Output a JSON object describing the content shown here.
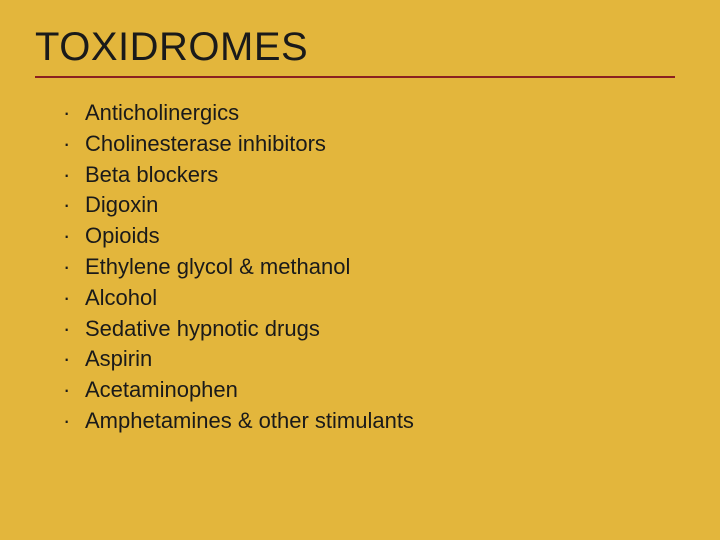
{
  "slide": {
    "title": "TOXIDROMES",
    "background_color": "#e3b63c",
    "title_color": "#1a1a1a",
    "title_fontsize": 40,
    "divider_color": "#8b2020",
    "divider_width": 640,
    "list_fontsize": 22,
    "list_color": "#1a1a1a",
    "items": [
      "Anticholinergics",
      "Cholinesterase inhibitors",
      "Beta blockers",
      "Digoxin",
      "Opioids",
      "Ethylene glycol & methanol",
      "Alcohol",
      "Sedative hypnotic drugs",
      "Aspirin",
      "Acetaminophen",
      "Amphetamines & other stimulants"
    ]
  }
}
